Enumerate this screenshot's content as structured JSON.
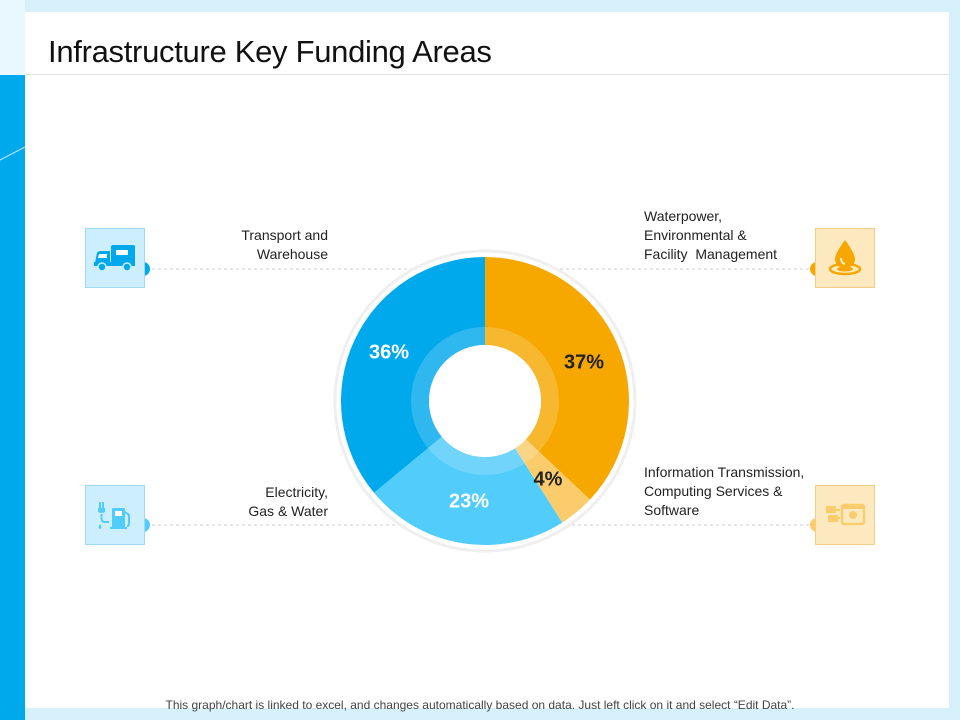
{
  "slide": {
    "title": "Infrastructure Key Funding Areas",
    "footer": "This graph/chart is linked to excel, and changes automatically based on data. Just left click on it and select “Edit Data”."
  },
  "categories": [
    {
      "label_lines": [
        "Transport and",
        "Warehouse"
      ],
      "icon": "truck-icon"
    },
    {
      "label_lines": [
        "Waterpower,",
        "Environmental &",
        "Facility  Management"
      ],
      "icon": "water-drop-icon"
    },
    {
      "label_lines": [
        "Electricity,",
        "Gas & Water"
      ],
      "icon": "fuel-pump-icon"
    },
    {
      "label_lines": [
        "Information Transmission,",
        "Computing Services &",
        "Software"
      ],
      "icon": "computer-monitor-icon"
    }
  ],
  "chart_data": {
    "type": "pie",
    "style": "donut",
    "title": "",
    "slices": [
      {
        "label": "37%",
        "value": 37,
        "color": "#f6a800"
      },
      {
        "label": "4%",
        "value": 4,
        "color": "#fbcc6c"
      },
      {
        "label": "23%",
        "value": 23,
        "color": "#52ccfa"
      },
      {
        "label": "36%",
        "value": 36,
        "color": "#00a9ec"
      }
    ],
    "start": "12 o'clock",
    "direction": "clockwise"
  },
  "colors": {
    "accent_blue": "#00a9ec",
    "accent_orange": "#f6a800",
    "light_blue": "#52ccfa",
    "light_orange": "#fbcc6c"
  }
}
